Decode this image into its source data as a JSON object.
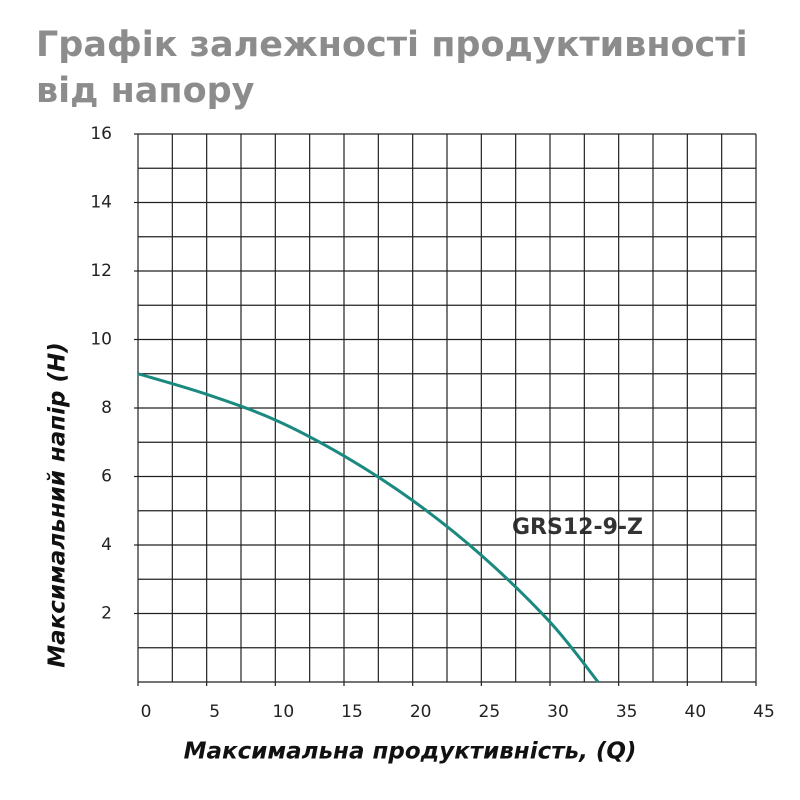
{
  "chart_data": {
    "type": "line",
    "title": "Графік залежності продуктивності від напору",
    "x_label": "Максимальна продуктивність, (Q)",
    "y_label": "Максимальний напір (H)",
    "annotation": "GRS12-9-Z",
    "x": [
      0,
      5,
      10,
      15,
      20,
      25,
      30,
      33.5
    ],
    "series": [
      {
        "name": "GRS12-9-Z",
        "color": "#1a8a80",
        "values": [
          9,
          8.4,
          7.65,
          6.6,
          5.3,
          3.7,
          1.75,
          0
        ]
      }
    ],
    "xlim": [
      0,
      45
    ],
    "ylim": [
      0,
      16
    ],
    "xticks": [
      0,
      5,
      10,
      15,
      20,
      25,
      30,
      35,
      40,
      45
    ],
    "yticks": [
      2,
      4,
      6,
      8,
      10,
      12,
      14,
      16
    ],
    "grid": true,
    "x_grid_step": 2.5,
    "y_grid_step": 1
  }
}
